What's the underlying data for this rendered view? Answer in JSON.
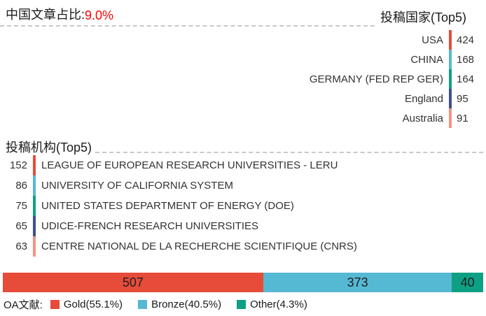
{
  "header": {
    "china_ratio_label": "中国文章占比:",
    "china_ratio_value": "9.0%",
    "countries_title": "投稿国家(Top5)"
  },
  "countries": [
    {
      "name": "USA",
      "value": 424,
      "color": "#e64c39"
    },
    {
      "name": "CHINA",
      "value": 168,
      "color": "#56b9d4"
    },
    {
      "name": "GERMANY (FED REP GER)",
      "value": 164,
      "color": "#0ea084"
    },
    {
      "name": "England",
      "value": 95,
      "color": "#3f508c"
    },
    {
      "name": "Australia",
      "value": 91,
      "color": "#f39480"
    }
  ],
  "institutions_title": "投稿机构(Top5)",
  "institutions": [
    {
      "value": 152,
      "name": "LEAGUE OF EUROPEAN RESEARCH UNIVERSITIES - LERU",
      "color": "#e64c39"
    },
    {
      "value": 86,
      "name": "UNIVERSITY OF CALIFORNIA SYSTEM",
      "color": "#56b9d4"
    },
    {
      "value": 75,
      "name": "UNITED STATES DEPARTMENT OF ENERGY (DOE)",
      "color": "#0ea084"
    },
    {
      "value": 65,
      "name": "UDICE-FRENCH RESEARCH UNIVERSITIES",
      "color": "#3f508c"
    },
    {
      "value": 63,
      "name": "CENTRE NATIONAL DE LA RECHERCHE SCIENTIFIQUE (CNRS)",
      "color": "#f39480"
    }
  ],
  "oa_bar": {
    "label": "OA文献:",
    "segments": [
      {
        "name": "Gold",
        "value": 507,
        "percent": "55.1%",
        "legend": "Gold(55.1%)",
        "color": "#e64c39",
        "width": "54.2%"
      },
      {
        "name": "Bronze",
        "value": 373,
        "percent": "40.5%",
        "legend": "Bronze(40.5%)",
        "color": "#56b9d4",
        "width": "39.3%"
      },
      {
        "name": "Other",
        "value": 40,
        "percent": "4.3%",
        "legend": "Other(4.3%)",
        "color": "#0ea084",
        "width": "6.5%"
      }
    ]
  },
  "chart_data": [
    {
      "type": "bar",
      "title": "投稿国家(Top5)",
      "orientation": "list",
      "categories": [
        "USA",
        "CHINA",
        "GERMANY (FED REP GER)",
        "England",
        "Australia"
      ],
      "values": [
        424,
        168,
        164,
        95,
        91
      ]
    },
    {
      "type": "bar",
      "title": "投稿机构(Top5)",
      "orientation": "list",
      "categories": [
        "LEAGUE OF EUROPEAN RESEARCH UNIVERSITIES - LERU",
        "UNIVERSITY OF CALIFORNIA SYSTEM",
        "UNITED STATES DEPARTMENT OF ENERGY (DOE)",
        "UDICE-FRENCH RESEARCH UNIVERSITIES",
        "CENTRE NATIONAL DE LA RECHERCHE SCIENTIFIQUE (CNRS)"
      ],
      "values": [
        152,
        86,
        75,
        65,
        63
      ]
    },
    {
      "type": "bar",
      "subtype": "stacked-horizontal",
      "title": "OA文献",
      "series": [
        {
          "name": "Gold",
          "value": 507,
          "percent": 55.1
        },
        {
          "name": "Bronze",
          "value": 373,
          "percent": 40.5
        },
        {
          "name": "Other",
          "value": 40,
          "percent": 4.3
        }
      ],
      "legend_position": "bottom"
    },
    {
      "type": "stat",
      "label": "中国文章占比",
      "value": "9.0%"
    }
  ]
}
